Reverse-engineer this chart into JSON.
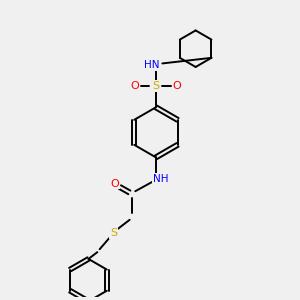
{
  "bg_color": "#f0f0f0",
  "bond_color": "#000000",
  "atom_colors": {
    "N": "#0000ff",
    "O": "#ff0000",
    "S": "#ccaa00",
    "H": "#008080",
    "C": "#000000"
  },
  "figsize": [
    3.0,
    3.0
  ],
  "dpi": 100,
  "lw": 1.4,
  "fontsize": 7.5
}
